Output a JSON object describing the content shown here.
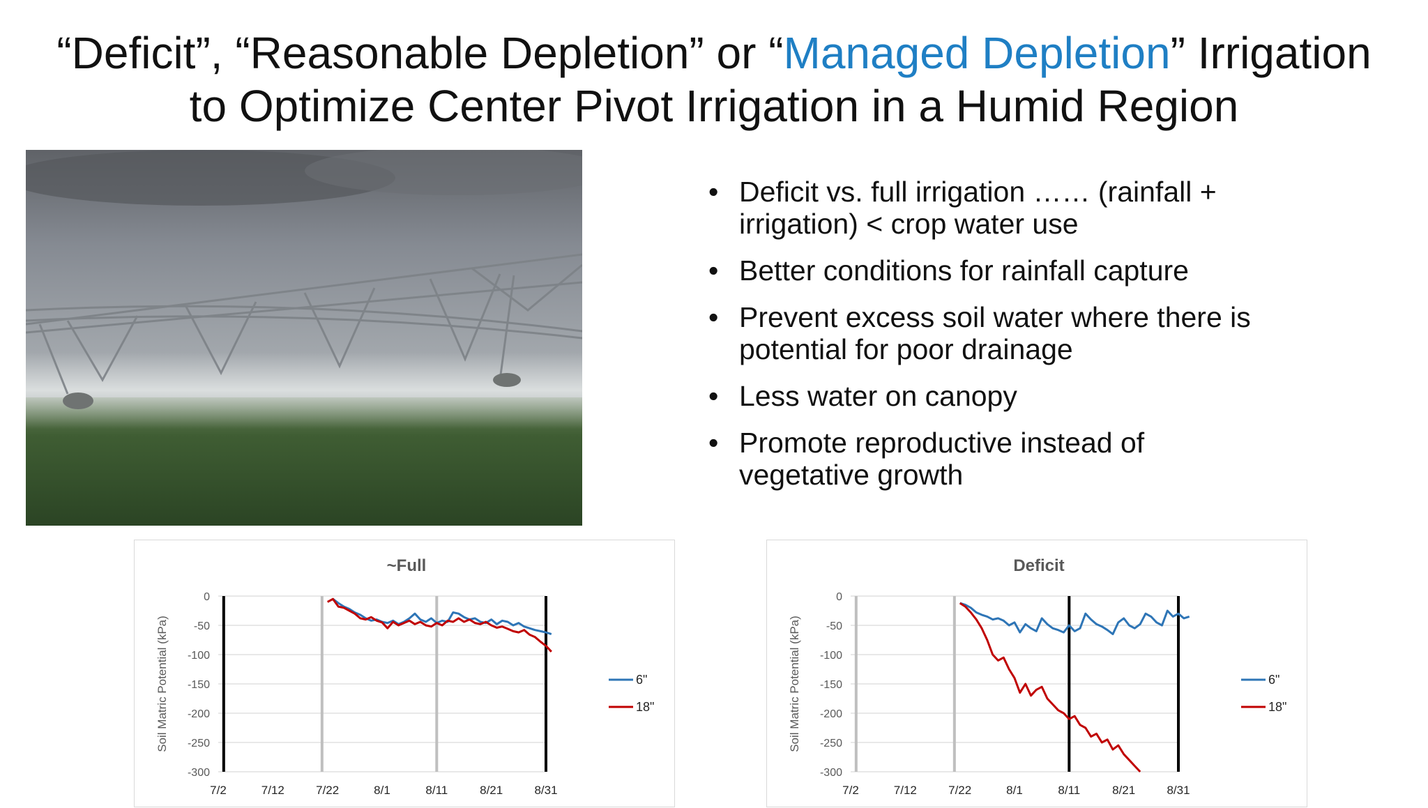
{
  "slide": {
    "title_part1": "“Deficit”, “Reasonable Depletion” or “",
    "title_accent": "Managed Depletion",
    "title_part2": "” Irrigation",
    "title_line2": "to Optimize Center Pivot Irrigation in a Humid Region",
    "accent_color": "#1f7fc4",
    "bullets": [
      {
        "line1": "Deficit vs. full irrigation  ……  (rainfall +",
        "line2": "irrigation) < crop water use"
      },
      {
        "line1": "Better conditions for rainfall capture",
        "line2": ""
      },
      {
        "line1": "Prevent excess soil water where there is",
        "line2": "potential for poor drainage"
      },
      {
        "line1": "Less water on canopy",
        "line2": ""
      },
      {
        "line1": "Promote reproductive instead of",
        "line2": "vegetative growth"
      }
    ],
    "bullet_symbol": "•"
  },
  "chart_data": [
    {
      "type": "line",
      "title": "~Full",
      "ylabel": "Soil Matric Potential (kPa)",
      "xlabel": "",
      "x_ticks": [
        "7/2",
        "7/12",
        "7/22",
        "8/1",
        "8/11",
        "8/21",
        "8/31"
      ],
      "y_ticks": [
        "0",
        "-50",
        "-100",
        "-150",
        "-200",
        "-250",
        "-300"
      ],
      "ylim": [
        -300,
        0
      ],
      "xlim_days": [
        0,
        60
      ],
      "grid": true,
      "legend_position": "right",
      "vlines": [
        {
          "day": 1,
          "color": "#000000"
        },
        {
          "day": 19,
          "color": "#bfbfbf"
        },
        {
          "day": 40,
          "color": "#bfbfbf"
        },
        {
          "day": 60,
          "color": "#000000"
        }
      ],
      "series": [
        {
          "name": "6\"",
          "color": "#2e75b6",
          "x": [
            21,
            22,
            23,
            24,
            25,
            26,
            27,
            28,
            29,
            30,
            31,
            32,
            33,
            34,
            35,
            36,
            37,
            38,
            39,
            40,
            41,
            42,
            43,
            44,
            45,
            46,
            47,
            48,
            49,
            50,
            51,
            52,
            53,
            54,
            55,
            56,
            57,
            58,
            59,
            60,
            61
          ],
          "y": [
            -5,
            -12,
            -18,
            -22,
            -28,
            -32,
            -38,
            -42,
            -40,
            -44,
            -46,
            -42,
            -48,
            -44,
            -38,
            -30,
            -40,
            -44,
            -38,
            -46,
            -42,
            -44,
            -28,
            -30,
            -36,
            -40,
            -38,
            -44,
            -46,
            -40,
            -48,
            -42,
            -44,
            -50,
            -46,
            -52,
            -55,
            -58,
            -60,
            -62,
            -65
          ]
        },
        {
          "name": "18\"",
          "color": "#c00000",
          "x": [
            20,
            21,
            22,
            23,
            24,
            25,
            26,
            27,
            28,
            29,
            30,
            31,
            32,
            33,
            34,
            35,
            36,
            37,
            38,
            39,
            40,
            41,
            42,
            43,
            44,
            45,
            46,
            47,
            48,
            49,
            50,
            51,
            52,
            53,
            54,
            55,
            56,
            57,
            58,
            59,
            60,
            61
          ],
          "y": [
            -10,
            -5,
            -18,
            -20,
            -25,
            -30,
            -38,
            -40,
            -36,
            -42,
            -45,
            -55,
            -44,
            -50,
            -46,
            -42,
            -48,
            -44,
            -50,
            -52,
            -46,
            -50,
            -42,
            -44,
            -38,
            -44,
            -40,
            -46,
            -48,
            -44,
            -50,
            -54,
            -52,
            -56,
            -60,
            -62,
            -58,
            -66,
            -70,
            -78,
            -85,
            -95
          ]
        }
      ]
    },
    {
      "type": "line",
      "title": "Deficit",
      "ylabel": "Soil Matric Potential (kPa)",
      "xlabel": "",
      "x_ticks": [
        "7/2",
        "7/12",
        "7/22",
        "8/1",
        "8/11",
        "8/21",
        "8/31"
      ],
      "y_ticks": [
        "0",
        "-50",
        "-100",
        "-150",
        "-200",
        "-250",
        "-300"
      ],
      "ylim": [
        -300,
        0
      ],
      "xlim_days": [
        0,
        60
      ],
      "grid": true,
      "legend_position": "right",
      "vlines": [
        {
          "day": 1,
          "color": "#bfbfbf"
        },
        {
          "day": 19,
          "color": "#bfbfbf"
        },
        {
          "day": 40,
          "color": "#000000"
        },
        {
          "day": 60,
          "color": "#000000"
        }
      ],
      "series": [
        {
          "name": "6\"",
          "color": "#2e75b6",
          "x": [
            20,
            21,
            22,
            23,
            24,
            25,
            26,
            27,
            28,
            29,
            30,
            31,
            32,
            33,
            34,
            35,
            36,
            37,
            38,
            39,
            40,
            41,
            42,
            43,
            44,
            45,
            46,
            47,
            48,
            49,
            50,
            51,
            52,
            53,
            54,
            55,
            56,
            57,
            58,
            59,
            60,
            61,
            62
          ],
          "y": [
            -12,
            -15,
            -20,
            -28,
            -32,
            -35,
            -40,
            -38,
            -42,
            -50,
            -45,
            -62,
            -48,
            -55,
            -60,
            -38,
            -48,
            -55,
            -58,
            -62,
            -50,
            -60,
            -55,
            -30,
            -40,
            -48,
            -52,
            -58,
            -65,
            -45,
            -38,
            -50,
            -55,
            -48,
            -30,
            -35,
            -45,
            -50,
            -25,
            -35,
            -30,
            -38,
            -35
          ]
        },
        {
          "name": "18\"",
          "color": "#c00000",
          "x": [
            20,
            21,
            22,
            23,
            24,
            25,
            26,
            27,
            28,
            29,
            30,
            31,
            32,
            33,
            34,
            35,
            36,
            37,
            38,
            39,
            40,
            41,
            42,
            43,
            44,
            45,
            46,
            47,
            48,
            49,
            50,
            51,
            52,
            53
          ],
          "y": [
            -12,
            -18,
            -28,
            -40,
            -55,
            -75,
            -100,
            -110,
            -105,
            -125,
            -140,
            -165,
            -150,
            -170,
            -160,
            -155,
            -175,
            -185,
            -195,
            -200,
            -210,
            -205,
            -220,
            -225,
            -240,
            -235,
            -250,
            -245,
            -262,
            -255,
            -270,
            -280,
            -290,
            -300
          ]
        }
      ]
    }
  ]
}
